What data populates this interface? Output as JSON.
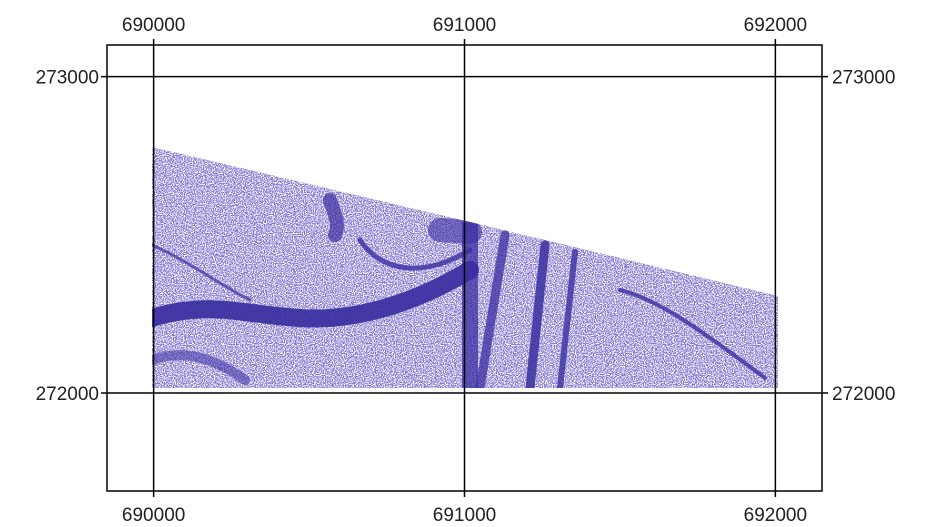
{
  "map": {
    "x_ticks": [
      {
        "value": 690000,
        "label": "690000"
      },
      {
        "value": 691000,
        "label": "691000"
      },
      {
        "value": 692000,
        "label": "692000"
      }
    ],
    "y_ticks": [
      {
        "value": 273000,
        "label": "273000"
      },
      {
        "value": 272000,
        "label": "272000"
      }
    ],
    "x_range": [
      689850,
      692150
    ],
    "y_range": [
      271690,
      273100
    ],
    "grid": true,
    "colors": {
      "frame": "#000000",
      "grid": "#000000",
      "points": "#3a2ea0",
      "background": "#ffffff"
    }
  }
}
